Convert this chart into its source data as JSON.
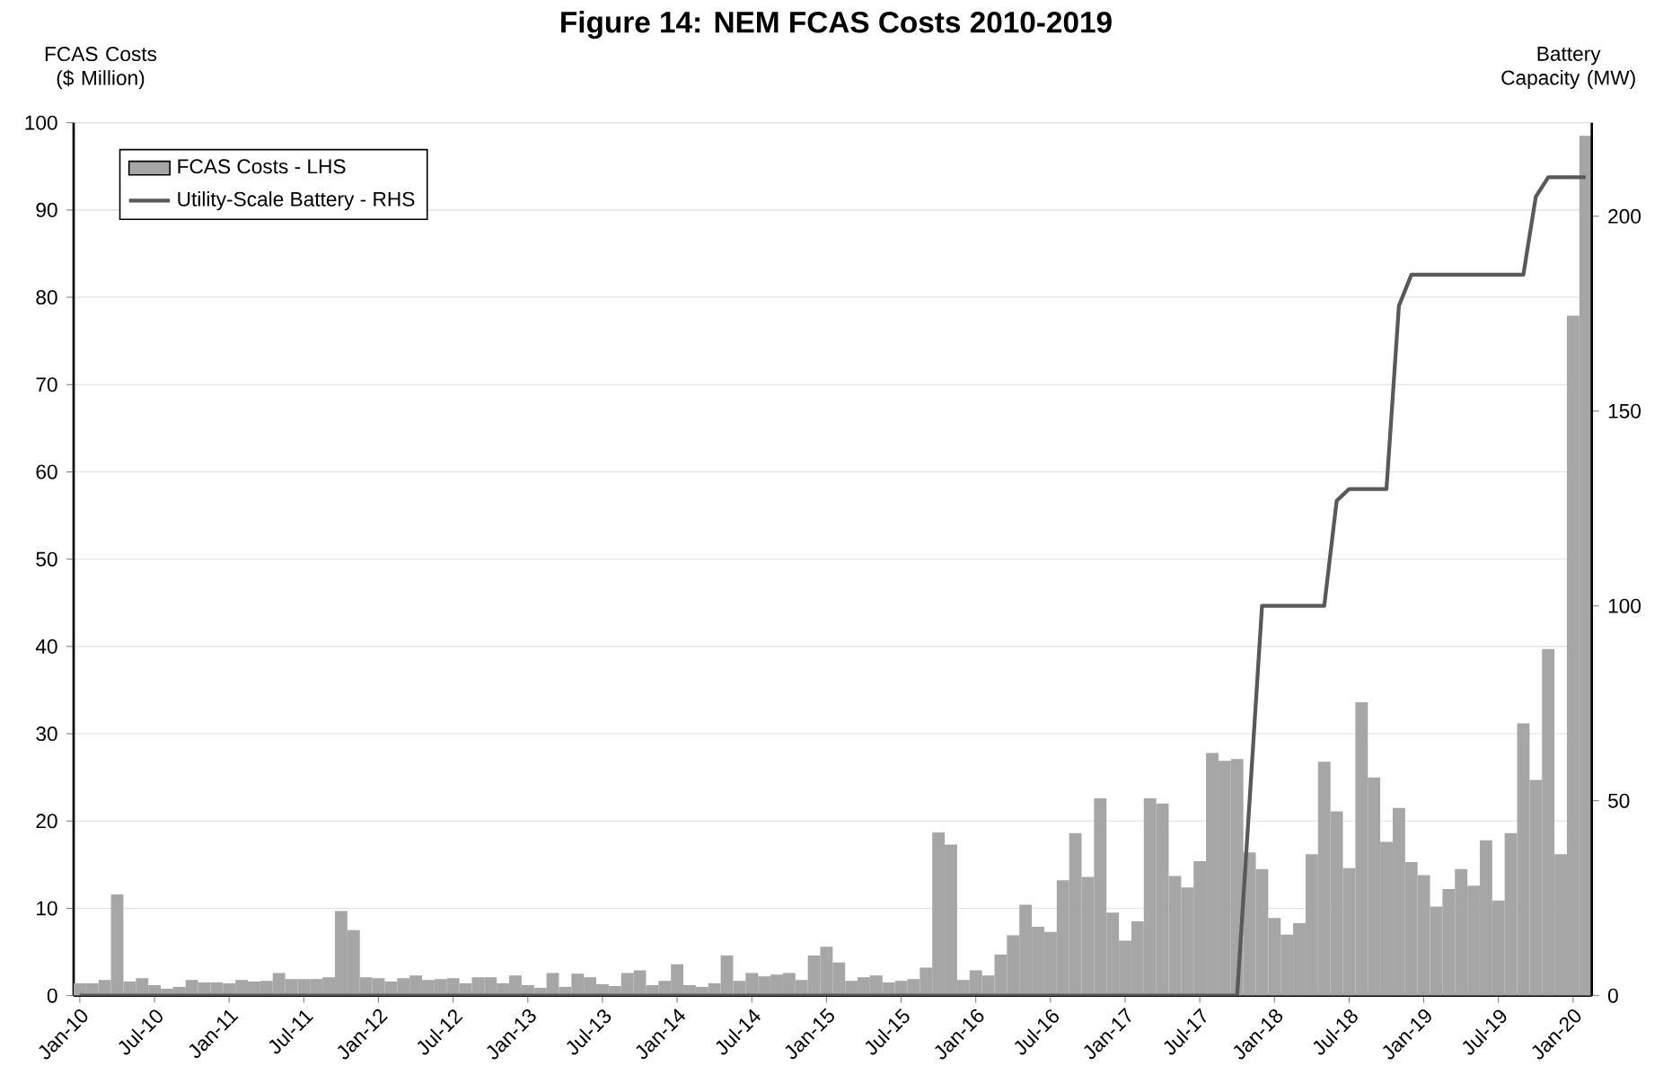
{
  "chart_data": {
    "type": "bar",
    "title": "Figure 14:   NEM FCAS Costs 2010-2019",
    "ylabel": "FCAS Costs ($ Million)",
    "y2label": "Battery Capacity (MW)",
    "categories": [
      "Jan-10",
      null,
      null,
      null,
      null,
      null,
      "Jul-10",
      null,
      null,
      null,
      null,
      null,
      "Jan-11",
      null,
      null,
      null,
      null,
      null,
      "Jul-11",
      null,
      null,
      null,
      null,
      null,
      "Jan-12",
      null,
      null,
      null,
      null,
      null,
      "Jul-12",
      null,
      null,
      null,
      null,
      null,
      "Jan-13",
      null,
      null,
      null,
      null,
      null,
      "Jul-13",
      null,
      null,
      null,
      null,
      null,
      "Jan-14",
      null,
      null,
      null,
      null,
      null,
      "Jul-14",
      null,
      null,
      null,
      null,
      null,
      "Jan-15",
      null,
      null,
      null,
      null,
      null,
      "Jul-15",
      null,
      null,
      null,
      null,
      null,
      "Jan-16",
      null,
      null,
      null,
      null,
      null,
      "Jul-16",
      null,
      null,
      null,
      null,
      null,
      "Jan-17",
      null,
      null,
      null,
      null,
      null,
      "Jul-17",
      null,
      null,
      null,
      null,
      null,
      "Jan-18",
      null,
      null,
      null,
      null,
      null,
      "Jul-18",
      null,
      null,
      null,
      null,
      null,
      "Jan-19",
      null,
      null,
      null,
      null,
      null,
      "Jul-19",
      null,
      null,
      null,
      null,
      null,
      "Jan-20",
      null
    ],
    "series": [
      {
        "name": "FCAS Costs - LHS",
        "color": "#a6a6a6",
        "values": [
          1.4,
          1.4,
          1.8,
          11.6,
          1.6,
          2.0,
          1.2,
          0.8,
          1.0,
          1.8,
          1.5,
          1.5,
          1.4,
          1.8,
          1.6,
          1.7,
          2.6,
          1.9,
          1.9,
          1.9,
          2.1,
          9.7,
          7.5,
          2.1,
          2.0,
          1.6,
          2.0,
          2.3,
          1.8,
          1.9,
          2.0,
          1.4,
          2.1,
          2.1,
          1.4,
          2.3,
          1.2,
          0.9,
          2.6,
          1.0,
          2.5,
          2.1,
          1.3,
          1.1,
          2.6,
          2.9,
          1.2,
          1.7,
          3.6,
          1.2,
          1.0,
          1.4,
          4.6,
          1.7,
          2.6,
          2.2,
          2.4,
          2.6,
          1.8,
          4.6,
          5.6,
          3.8,
          1.7,
          2.1,
          2.3,
          1.5,
          1.7,
          1.9,
          3.2,
          18.7,
          17.3,
          1.8,
          2.9,
          2.3,
          4.7,
          6.9,
          10.4,
          7.9,
          7.3,
          13.2,
          18.6,
          13.6,
          22.6,
          9.5,
          6.3,
          8.5,
          22.6,
          22.0,
          13.7,
          12.4,
          15.4,
          27.8,
          26.9,
          27.1,
          16.4,
          14.5,
          8.9,
          7.0,
          8.3,
          16.2,
          26.8,
          21.1,
          14.6,
          33.6,
          25.0,
          17.6,
          21.5,
          15.3,
          13.8,
          10.2,
          12.2,
          14.5,
          12.6,
          17.8,
          10.9,
          18.6,
          31.2,
          24.7,
          39.7,
          16.2,
          77.9,
          98.5
        ]
      },
      {
        "name": "Utility-Scale Battery - RHS",
        "type": "line",
        "axis": "y2",
        "color": "#595959",
        "values": [
          0,
          0,
          0,
          0,
          0,
          0,
          0,
          0,
          0,
          0,
          0,
          0,
          0,
          0,
          0,
          0,
          0,
          0,
          0,
          0,
          0,
          0,
          0,
          0,
          0,
          0,
          0,
          0,
          0,
          0,
          0,
          0,
          0,
          0,
          0,
          0,
          0,
          0,
          0,
          0,
          0,
          0,
          0,
          0,
          0,
          0,
          0,
          0,
          0,
          0,
          0,
          0,
          0,
          0,
          0,
          0,
          0,
          0,
          0,
          0,
          0,
          0,
          0,
          0,
          0,
          0,
          0,
          0,
          0,
          0,
          0,
          0,
          0,
          0,
          0,
          0,
          0,
          0,
          0,
          0,
          0,
          0,
          0,
          0,
          0,
          0,
          0,
          0,
          0,
          0,
          0,
          0,
          0,
          0,
          50,
          100,
          100,
          100,
          100,
          100,
          100,
          127,
          130,
          130,
          130,
          130,
          177,
          185,
          185,
          185,
          185,
          185,
          185,
          185,
          185,
          185,
          185,
          205,
          210,
          210,
          210,
          210
        ]
      }
    ],
    "ylim": [
      0,
      100
    ],
    "yticks": [
      0,
      10,
      20,
      30,
      40,
      50,
      60,
      70,
      80,
      90,
      100
    ],
    "y2lim": [
      0,
      224
    ],
    "y2ticks": [
      0,
      50,
      100,
      150,
      200
    ],
    "grid": "y",
    "legend": "top left"
  }
}
